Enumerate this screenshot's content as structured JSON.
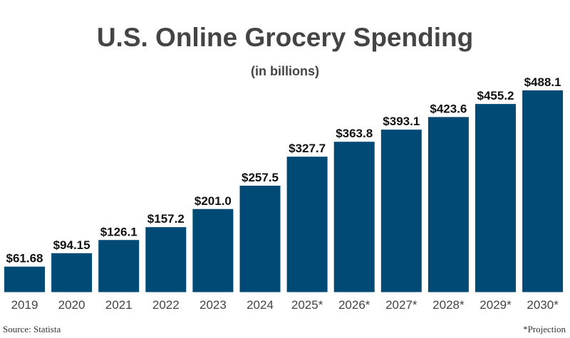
{
  "chart_data": {
    "type": "bar",
    "title": "U.S. Online Grocery Spending",
    "subtitle": "(in billions)",
    "categories": [
      "2019",
      "2020",
      "2021",
      "2022",
      "2023",
      "2024",
      "2025*",
      "2026*",
      "2027*",
      "2028*",
      "2029*",
      "2030*"
    ],
    "values": [
      61.68,
      94.15,
      126.1,
      157.2,
      201.0,
      257.5,
      327.7,
      363.8,
      393.1,
      423.6,
      455.2,
      488.1
    ],
    "data_labels": [
      "$61.68",
      "$94.15",
      "$126.1",
      "$157.2",
      "$201.0",
      "$257.5",
      "$327.7",
      "$363.8",
      "$393.1",
      "$423.6",
      "$455.2",
      "$488.1"
    ],
    "xlabel": "",
    "ylabel": "",
    "ylim": [
      0,
      488.1
    ],
    "grid": false,
    "bar_color": "#004a75",
    "source": "Source: Statista",
    "footnote": "*Projection"
  }
}
